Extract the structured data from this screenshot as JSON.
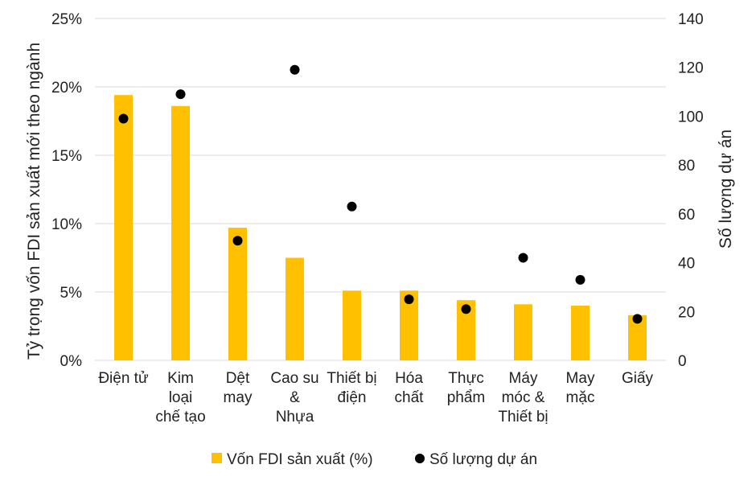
{
  "chart_data": {
    "type": "bar",
    "categories": [
      [
        "Điện tử"
      ],
      [
        "Kim",
        "loại",
        "chế tạo"
      ],
      [
        "Dệt",
        "may"
      ],
      [
        "Cao su",
        "&",
        "Nhựa"
      ],
      [
        "Thiết bị",
        "điện"
      ],
      [
        "Hóa",
        "chất"
      ],
      [
        "Thực",
        "phẩm"
      ],
      [
        "Máy",
        "móc &",
        "Thiết bị"
      ],
      [
        "May",
        "mặc"
      ],
      [
        "Giấy"
      ]
    ],
    "series": [
      {
        "name": "Vốn FDI sản xuất (%)",
        "type": "bar",
        "axis": "left",
        "color": "#FFC000",
        "values": [
          19.4,
          18.6,
          9.7,
          7.5,
          5.1,
          5.1,
          4.4,
          4.1,
          4.0,
          3.3
        ]
      },
      {
        "name": "Số lượng dự án",
        "type": "scatter",
        "axis": "right",
        "color": "#000000",
        "values": [
          99,
          109,
          49,
          119,
          63,
          25,
          21,
          42,
          33,
          17
        ]
      }
    ],
    "ylabel": "Tỷ trọng vốn FDI sản xuất mới theo ngành",
    "y2label": "Số lượng dự án",
    "ylim": [
      0,
      25
    ],
    "y2lim": [
      0,
      140
    ],
    "yticks": [
      "0%",
      "5%",
      "10%",
      "15%",
      "20%",
      "25%"
    ],
    "y2ticks": [
      "0",
      "20",
      "40",
      "60",
      "80",
      "100",
      "120",
      "140"
    ],
    "grid": true,
    "legend": "bottom"
  }
}
